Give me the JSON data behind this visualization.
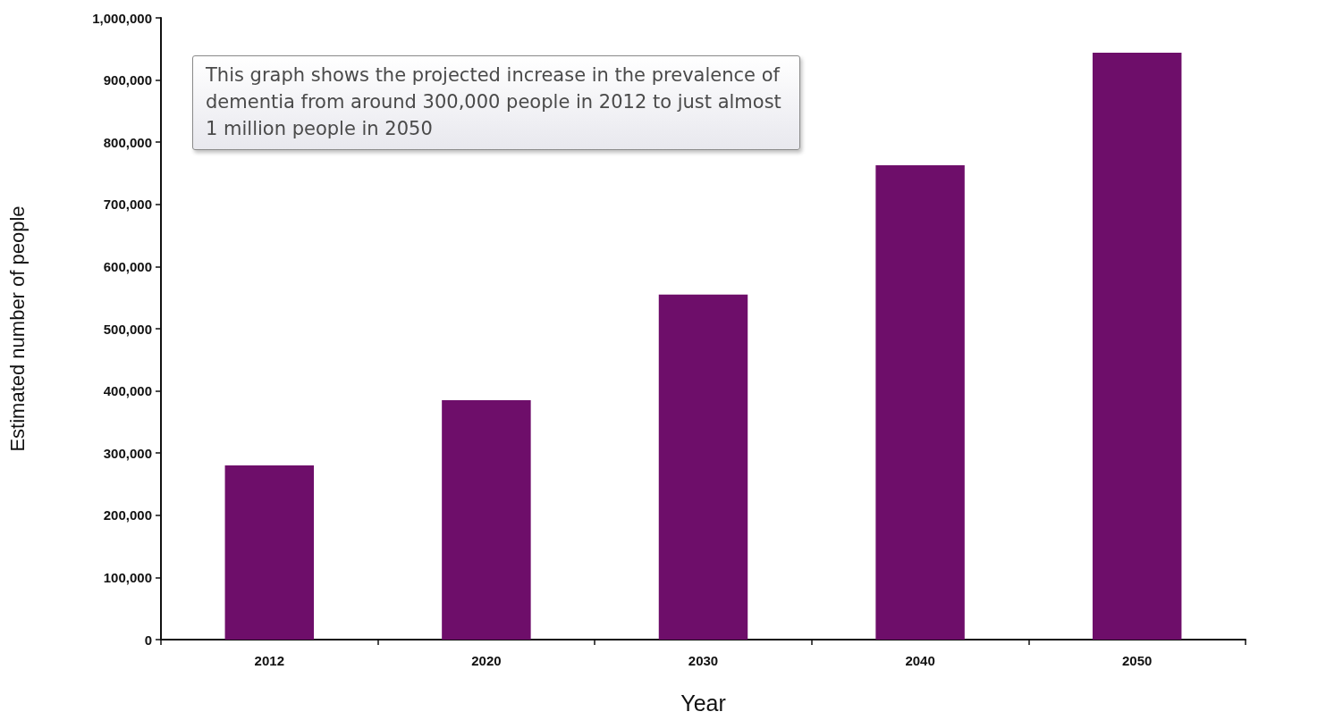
{
  "chart_data": {
    "type": "bar",
    "categories": [
      "2012",
      "2020",
      "2030",
      "2040",
      "2050"
    ],
    "values": [
      280000,
      385000,
      555000,
      763000,
      944000
    ],
    "color": "#6e0e6a",
    "xlabel": "Year",
    "ylabel": "Estimated number of people",
    "ylim": [
      0,
      1000000
    ],
    "yticks": [
      0,
      {
        "value": 100000,
        "label": "100,000"
      },
      {
        "value": 200000,
        "label": "200,000"
      },
      {
        "value": 300000,
        "label": "300,000"
      },
      {
        "value": 400000,
        "label": "400,000"
      },
      {
        "value": 500000,
        "label": "500,000"
      },
      {
        "value": 600000,
        "label": "600,000"
      },
      {
        "value": 700000,
        "label": "700,000"
      },
      {
        "value": 800000,
        "label": "800,000"
      },
      {
        "value": 900000,
        "label": "900,000"
      },
      {
        "value": 1000000,
        "label": "1,000,000"
      }
    ],
    "annotations": [
      "This graph shows the projected increase in the prevalence of dementia from around 300,000 people in 2012 to just almost 1 million people in 2050"
    ]
  }
}
